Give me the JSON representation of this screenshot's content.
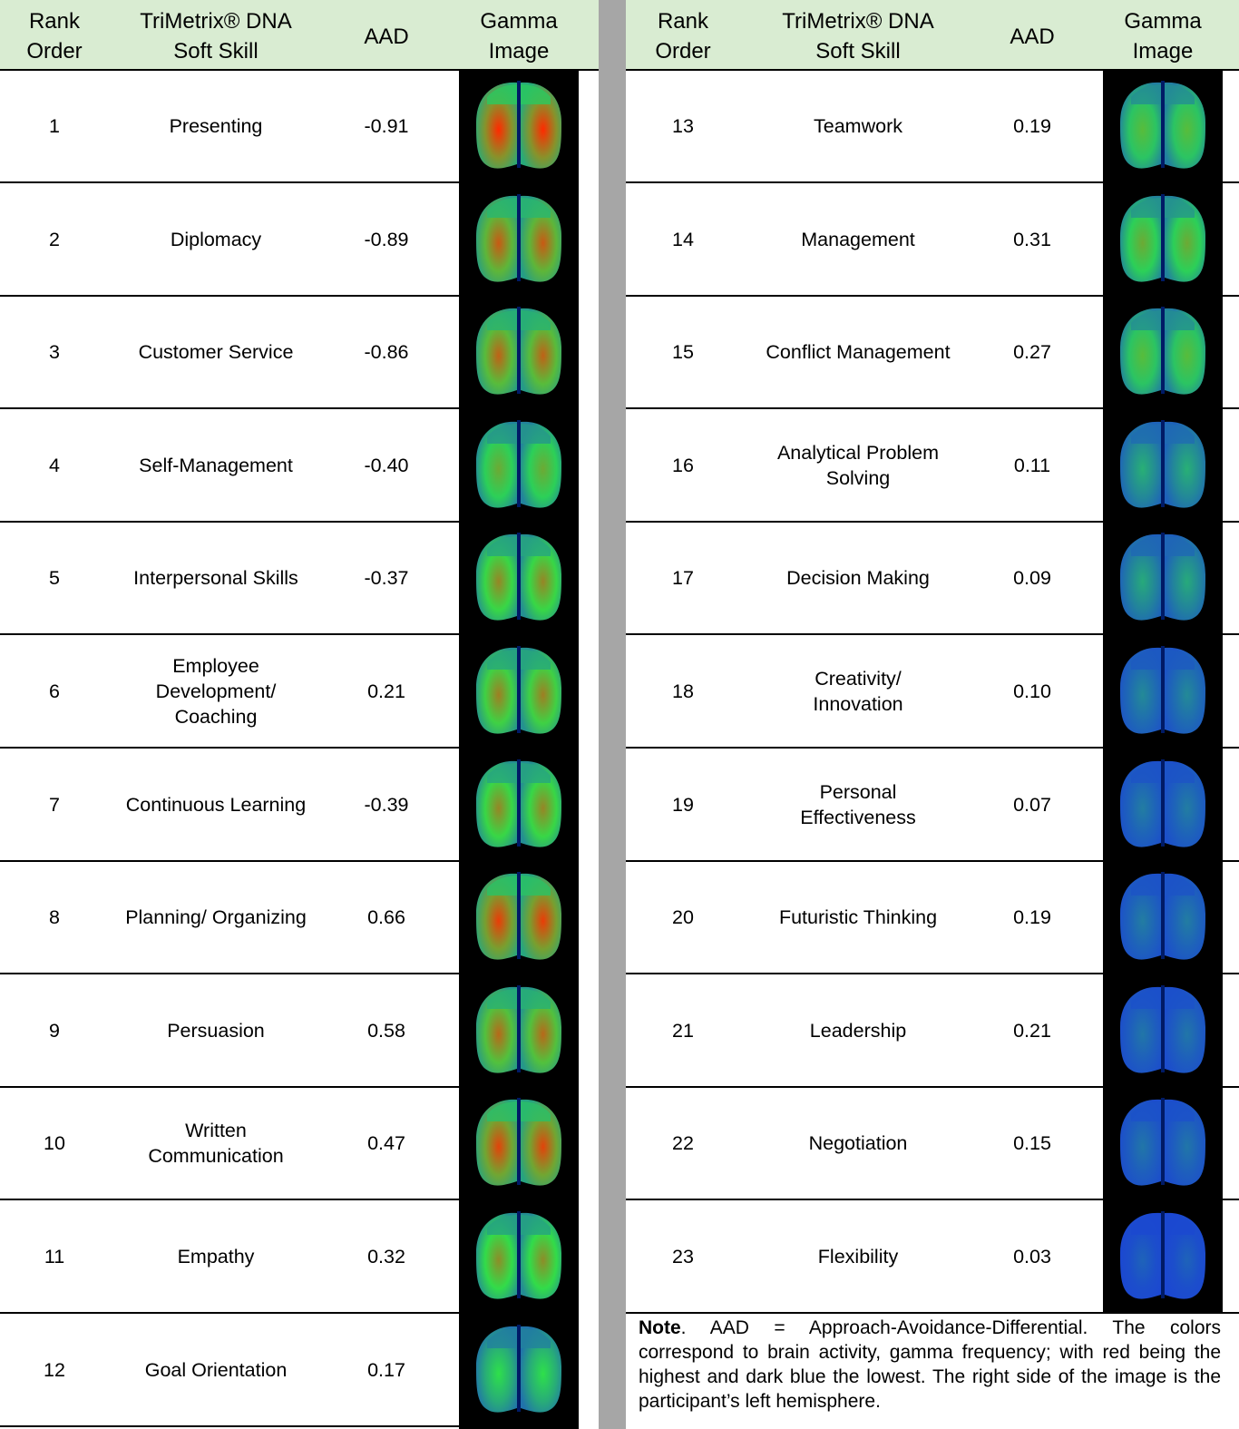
{
  "header": {
    "rank": "Rank\nOrder",
    "skill": "TriMetrix® DNA\nSoft Skill",
    "aad": "AAD",
    "gamma": "Gamma\nImage"
  },
  "colors": {
    "header_bg": "#d9ecd2",
    "divider": "#a6a6a6",
    "high": "#ff2a00",
    "mid": "#2ee04a",
    "low": "#1a40d8"
  },
  "left_rows": [
    {
      "rank": "1",
      "skill": "Presenting",
      "aad": "-0.91",
      "icon": "brain-gamma-icon",
      "activity": 0.95
    },
    {
      "rank": "2",
      "skill": "Diplomacy",
      "aad": "-0.89",
      "icon": "brain-gamma-icon",
      "activity": 0.82
    },
    {
      "rank": "3",
      "skill": "Customer Service",
      "aad": "-0.86",
      "icon": "brain-gamma-icon",
      "activity": 0.8
    },
    {
      "rank": "4",
      "skill": "Self-Management",
      "aad": "-0.40",
      "icon": "brain-gamma-icon",
      "activity": 0.6
    },
    {
      "rank": "5",
      "skill": "Interpersonal Skills",
      "aad": "-0.37",
      "icon": "brain-gamma-icon",
      "activity": 0.7
    },
    {
      "rank": "6",
      "skill": "Employee\nDevelopment/\nCoaching",
      "aad": "0.21",
      "icon": "brain-gamma-icon",
      "activity": 0.72
    },
    {
      "rank": "7",
      "skill": "Continuous Learning",
      "aad": "-0.39",
      "icon": "brain-gamma-icon",
      "activity": 0.7
    },
    {
      "rank": "8",
      "skill": "Planning/ Organizing",
      "aad": "0.66",
      "icon": "brain-gamma-icon",
      "activity": 0.9
    },
    {
      "rank": "9",
      "skill": "Persuasion",
      "aad": "0.58",
      "icon": "brain-gamma-icon",
      "activity": 0.78
    },
    {
      "rank": "10",
      "skill": "Written\nCommunication",
      "aad": "0.47",
      "icon": "brain-gamma-icon",
      "activity": 0.88
    },
    {
      "rank": "11",
      "skill": "Empathy",
      "aad": "0.32",
      "icon": "brain-gamma-icon",
      "activity": 0.68
    },
    {
      "rank": "12",
      "skill": "Goal Orientation",
      "aad": "0.17",
      "icon": "brain-gamma-icon",
      "activity": 0.45
    }
  ],
  "right_rows": [
    {
      "rank": "13",
      "skill": "Teamwork",
      "aad": "0.19",
      "icon": "brain-gamma-icon",
      "activity": 0.55
    },
    {
      "rank": "14",
      "skill": "Management",
      "aad": "0.31",
      "icon": "brain-gamma-icon",
      "activity": 0.6
    },
    {
      "rank": "15",
      "skill": "Conflict Management",
      "aad": "0.27",
      "icon": "brain-gamma-icon",
      "activity": 0.55
    },
    {
      "rank": "16",
      "skill": "Analytical Problem\nSolving",
      "aad": "0.11",
      "icon": "brain-gamma-icon",
      "activity": 0.3
    },
    {
      "rank": "17",
      "skill": "Decision Making",
      "aad": "0.09",
      "icon": "brain-gamma-icon",
      "activity": 0.28
    },
    {
      "rank": "18",
      "skill": "Creativity/\nInnovation",
      "aad": "0.10",
      "icon": "brain-gamma-icon",
      "activity": 0.18
    },
    {
      "rank": "19",
      "skill": "Personal\nEffectiveness",
      "aad": "0.07",
      "icon": "brain-gamma-icon",
      "activity": 0.14
    },
    {
      "rank": "20",
      "skill": "Futuristic Thinking",
      "aad": "0.19",
      "icon": "brain-gamma-icon",
      "activity": 0.14
    },
    {
      "rank": "21",
      "skill": "Leadership",
      "aad": "0.21",
      "icon": "brain-gamma-icon",
      "activity": 0.12
    },
    {
      "rank": "22",
      "skill": "Negotiation",
      "aad": "0.15",
      "icon": "brain-gamma-icon",
      "activity": 0.12
    },
    {
      "rank": "23",
      "skill": "Flexibility",
      "aad": "0.03",
      "icon": "brain-gamma-icon",
      "activity": 0.06
    }
  ],
  "note": {
    "label": "Note",
    "text": ". AAD = Approach-Avoidance-Differential.  The colors correspond to brain activity, gamma frequency; with red being the highest and dark blue the lowest.  The right side of the image is the participant’s left hemisphere."
  }
}
